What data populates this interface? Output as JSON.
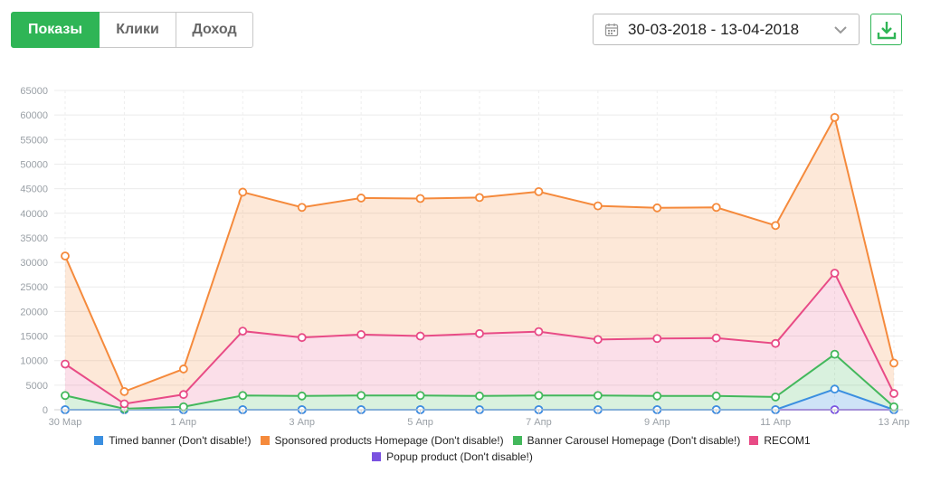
{
  "tabs": [
    {
      "label": "Показы",
      "active": true
    },
    {
      "label": "Клики",
      "active": false
    },
    {
      "label": "Доход",
      "active": false
    }
  ],
  "date_range": {
    "label": "30-03-2018 - 13-04-2018",
    "icon": "calendar-icon",
    "dropdown_icon": "chevron-down-icon"
  },
  "download": {
    "icon": "download-icon",
    "color": "#2fb556"
  },
  "chart_data": {
    "type": "area",
    "stacked": true,
    "ylim": [
      0,
      65000
    ],
    "yticks": [
      0,
      5000,
      10000,
      15000,
      20000,
      25000,
      30000,
      35000,
      40000,
      45000,
      50000,
      55000,
      60000,
      65000
    ],
    "x": [
      "30 Мар",
      "31 Мар",
      "1 Апр",
      "2 Апр",
      "3 Апр",
      "4 Апр",
      "5 Апр",
      "6 Апр",
      "7 Апр",
      "8 Апр",
      "9 Апр",
      "10 Апр",
      "11 Апр",
      "12 Апр",
      "13 Апр"
    ],
    "xtick_labels": [
      "30 Мар",
      "",
      "1 Апр",
      "",
      "3 Апр",
      "",
      "5 Апр",
      "",
      "7 Апр",
      "",
      "9 Апр",
      "",
      "11 Апр",
      "",
      "13 Апр"
    ],
    "grid": true,
    "legend_position": "bottom",
    "series": [
      {
        "name": "Timed banner (Don't disable!)",
        "color": "#3b8fe0",
        "values": [
          0,
          0,
          0,
          0,
          0,
          0,
          0,
          0,
          0,
          0,
          0,
          0,
          0,
          4200,
          0
        ]
      },
      {
        "name": "Sponsored products Homepage (Don't disable!)",
        "color": "#f58a3c",
        "values": [
          22000,
          2500,
          5200,
          28300,
          26500,
          27800,
          28000,
          27700,
          28500,
          27200,
          26600,
          26600,
          24000,
          31700,
          6200
        ]
      },
      {
        "name": "Banner Carousel Homepage (Don't disable!)",
        "color": "#43b85c",
        "values": [
          2900,
          200,
          600,
          2900,
          2800,
          2900,
          2900,
          2800,
          2900,
          2900,
          2800,
          2800,
          2600,
          7100,
          600
        ]
      },
      {
        "name": "RECOM1",
        "color": "#e84b86",
        "values": [
          6400,
          1000,
          2500,
          13100,
          11900,
          12400,
          12100,
          12700,
          13000,
          11400,
          11700,
          11800,
          10900,
          16500,
          2700
        ]
      },
      {
        "name": "Popup product (Don't disable!)",
        "color": "#7a52e0",
        "values": [
          0,
          0,
          0,
          0,
          0,
          0,
          0,
          0,
          0,
          0,
          0,
          0,
          0,
          0,
          0
        ]
      }
    ]
  }
}
